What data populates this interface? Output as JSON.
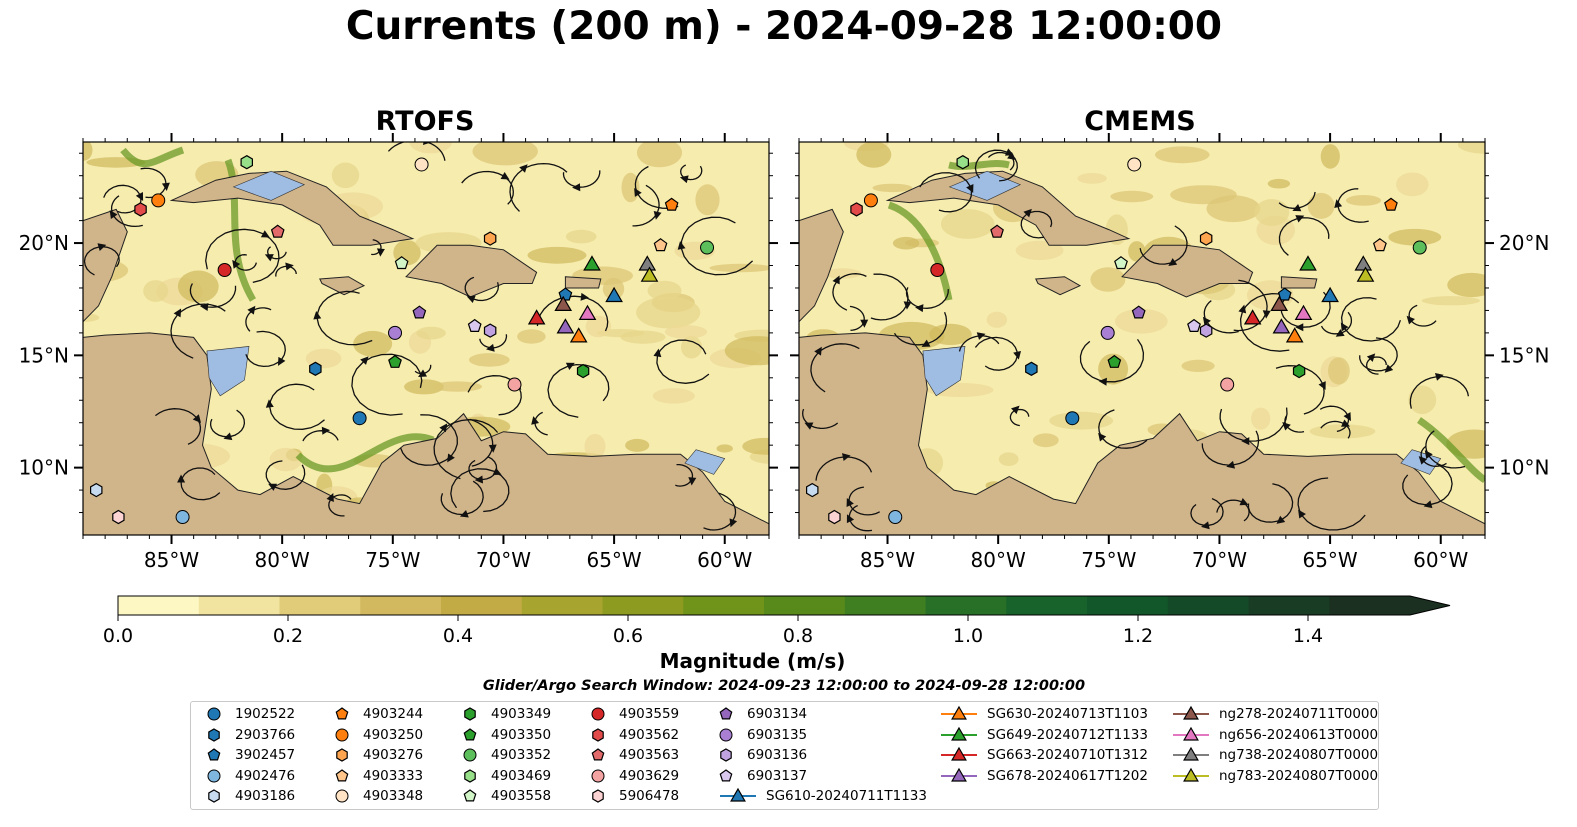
{
  "title": "Currents (200 m) - 2024-09-28 12:00:00",
  "panels": {
    "left_title": "RTOFS",
    "right_title": "CMEMS"
  },
  "colorbar": {
    "label": "Magnitude (m/s)",
    "ticks": [
      "0.0",
      "0.2",
      "0.4",
      "0.6",
      "0.8",
      "1.0",
      "1.2",
      "1.4"
    ],
    "colors": [
      "#fdf7c4",
      "#f0e4a0",
      "#e1cc7a",
      "#d2b85e",
      "#c2ab45",
      "#a8a430",
      "#8d9c21",
      "#6f9419",
      "#578a1b",
      "#3f7f22",
      "#287028",
      "#18622c",
      "#115729",
      "#154a28",
      "#193d24",
      "#1b3021"
    ]
  },
  "search_window": "Glider/Argo Search Window: 2024-09-23 12:00:00 to 2024-09-28 12:00:00",
  "chart_data": {
    "type": "map",
    "xlim": [
      -89.0,
      -58.0
    ],
    "ylim": [
      7.0,
      24.5
    ],
    "lon_ticks": [
      "85°W",
      "80°W",
      "75°W",
      "70°W",
      "65°W",
      "60°W"
    ],
    "lat_ticks": [
      "10°N",
      "15°N",
      "20°N"
    ],
    "argo_floats": [
      {
        "id": "1902522",
        "marker": "circle",
        "color": "#1f77b4",
        "lon": -76.5,
        "lat": 12.2
      },
      {
        "id": "2903766",
        "marker": "hexagon",
        "color": "#1f77b4",
        "lon": -78.5,
        "lat": 14.4
      },
      {
        "id": "3902457",
        "marker": "pentagon",
        "color": "#1f77b4",
        "lon": -67.2,
        "lat": 17.7
      },
      {
        "id": "4902476",
        "marker": "circle",
        "color": "#7fb6e0",
        "lon": -84.5,
        "lat": 7.8
      },
      {
        "id": "4903186",
        "marker": "hexagon",
        "color": "#c6dbef",
        "lon": -88.4,
        "lat": 9.0
      },
      {
        "id": "4903244",
        "marker": "pentagon",
        "color": "#ff7f0e",
        "lon": -62.4,
        "lat": 21.7
      },
      {
        "id": "4903250",
        "marker": "circle",
        "color": "#ff7f0e",
        "lon": -85.6,
        "lat": 21.9
      },
      {
        "id": "4903276",
        "marker": "hexagon",
        "color": "#ffa550",
        "lon": -70.6,
        "lat": 20.2
      },
      {
        "id": "4903333",
        "marker": "pentagon",
        "color": "#ffc58a",
        "lon": -62.9,
        "lat": 19.9
      },
      {
        "id": "4903348",
        "marker": "circle",
        "color": "#ffe3c4",
        "lon": -73.7,
        "lat": 23.5
      },
      {
        "id": "4903349",
        "marker": "hexagon",
        "color": "#2ca02c",
        "lon": -66.4,
        "lat": 14.3
      },
      {
        "id": "4903350",
        "marker": "pentagon",
        "color": "#2ca02c",
        "lon": -74.9,
        "lat": 14.7
      },
      {
        "id": "4903352",
        "marker": "circle",
        "color": "#5cbf5c",
        "lon": -60.8,
        "lat": 19.8
      },
      {
        "id": "4903469",
        "marker": "hexagon",
        "color": "#98df8a",
        "lon": -81.6,
        "lat": 23.6
      },
      {
        "id": "4903558",
        "marker": "pentagon",
        "color": "#d2f5c8",
        "lon": -74.6,
        "lat": 19.1
      },
      {
        "id": "4903559",
        "marker": "circle",
        "color": "#d62728",
        "lon": -82.6,
        "lat": 18.8
      },
      {
        "id": "4903562",
        "marker": "hexagon",
        "color": "#e34a4a",
        "lon": -86.4,
        "lat": 21.5
      },
      {
        "id": "4903563",
        "marker": "pentagon",
        "color": "#e36a6a",
        "lon": -80.2,
        "lat": 20.5
      },
      {
        "id": "4903629",
        "marker": "circle",
        "color": "#f4a3a3",
        "lon": -69.5,
        "lat": 13.7
      },
      {
        "id": "5906478",
        "marker": "hexagon",
        "color": "#fcd3d3",
        "lon": -87.4,
        "lat": 7.8
      },
      {
        "id": "6903134",
        "marker": "pentagon",
        "color": "#9467bd",
        "lon": -73.8,
        "lat": 16.9
      },
      {
        "id": "6903135",
        "marker": "circle",
        "color": "#a97fd4",
        "lon": -74.9,
        "lat": 16.0
      },
      {
        "id": "6903136",
        "marker": "hexagon",
        "color": "#c0a2e0",
        "lon": -70.6,
        "lat": 16.1
      },
      {
        "id": "6903137",
        "marker": "pentagon",
        "color": "#d9c7ee",
        "lon": -71.3,
        "lat": 16.3
      }
    ],
    "gliders": [
      {
        "id": "SG610-20240711T1133",
        "color": "#1f77b4",
        "lon": -65.0,
        "lat": 17.6
      },
      {
        "id": "SG630-20240713T1103",
        "color": "#ff7f0e",
        "lon": -66.6,
        "lat": 15.8
      },
      {
        "id": "SG649-20240712T1133",
        "color": "#2ca02c",
        "lon": -66.0,
        "lat": 19.0
      },
      {
        "id": "SG663-20240710T1312",
        "color": "#d62728",
        "lon": -68.5,
        "lat": 16.6
      },
      {
        "id": "SG678-20240617T1202",
        "color": "#9467bd",
        "lon": -67.2,
        "lat": 16.2
      },
      {
        "id": "ng278-20240711T0000",
        "color": "#8c564b",
        "lon": -67.3,
        "lat": 17.2
      },
      {
        "id": "ng656-20240613T0000",
        "color": "#e377c2",
        "lon": -66.2,
        "lat": 16.8
      },
      {
        "id": "ng738-20240807T0000",
        "color": "#7f7f7f",
        "lon": -63.5,
        "lat": 19.0
      },
      {
        "id": "ng783-20240807T0000",
        "color": "#bcbd22",
        "lon": -63.4,
        "lat": 18.5
      }
    ]
  }
}
